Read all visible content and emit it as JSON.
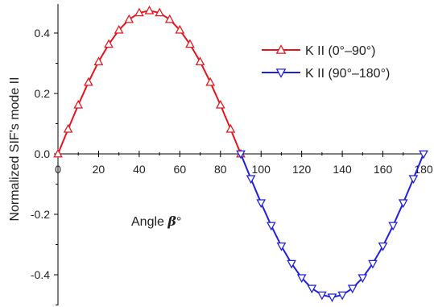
{
  "chart_data": {
    "type": "line",
    "ylabel": "Normalized SIF's mode II",
    "annotation": {
      "prefix": "Angle ",
      "symbol": "β",
      "suffix": "°"
    },
    "xlim": [
      0,
      180
    ],
    "ylim": [
      -0.5,
      0.5
    ],
    "x_ticks": [
      0,
      20,
      40,
      60,
      80,
      100,
      120,
      140,
      160,
      180
    ],
    "y_ticks": [
      -0.4,
      -0.2,
      0.0,
      0.2,
      0.4
    ],
    "y_tick_labels": [
      "-0.4",
      "-0.2",
      "0.0",
      "0.2",
      "0.4"
    ],
    "legend_position": "upper-right",
    "series": [
      {
        "name": "K II (0°–90°)",
        "color": "#e8141c",
        "marker": "triangle-up",
        "x": [
          0,
          5,
          10,
          15,
          20,
          25,
          30,
          35,
          40,
          45,
          50,
          55,
          60,
          65,
          70,
          75,
          80,
          85,
          90
        ],
        "y": [
          0.0,
          0.082,
          0.162,
          0.237,
          0.305,
          0.363,
          0.41,
          0.445,
          0.467,
          0.474,
          0.467,
          0.445,
          0.41,
          0.363,
          0.305,
          0.237,
          0.162,
          0.082,
          0.0
        ]
      },
      {
        "name": "K II (90°–180°)",
        "color": "#1f1fe0",
        "marker": "triangle-down",
        "x": [
          90,
          95,
          100,
          105,
          110,
          115,
          120,
          125,
          130,
          135,
          140,
          145,
          150,
          155,
          160,
          165,
          170,
          175,
          180
        ],
        "y": [
          0.0,
          -0.082,
          -0.162,
          -0.237,
          -0.305,
          -0.363,
          -0.41,
          -0.445,
          -0.467,
          -0.474,
          -0.467,
          -0.445,
          -0.41,
          -0.363,
          -0.305,
          -0.237,
          -0.162,
          -0.082,
          0.0
        ]
      }
    ]
  }
}
